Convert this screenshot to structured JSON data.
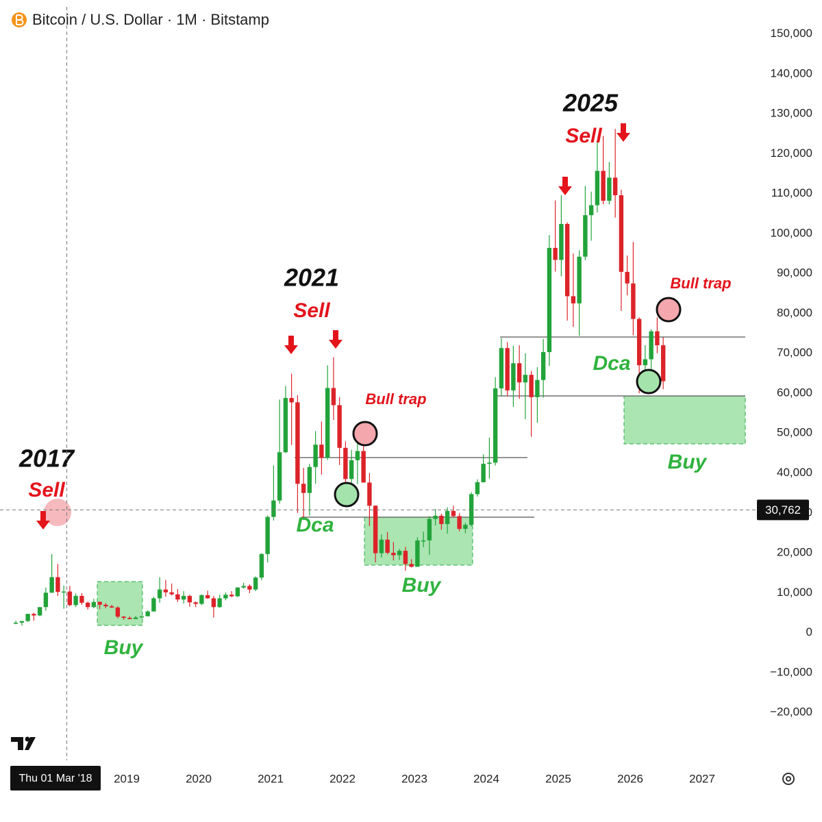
{
  "chart_data": {
    "type": "candlestick",
    "title": "Bitcoin / U.S. Dollar · 1M · Bitstamp",
    "x": [
      "2017-06",
      "2017-07",
      "2017-08",
      "2017-09",
      "2017-10",
      "2017-11",
      "2017-12",
      "2018-01",
      "2018-02",
      "2018-03",
      "2018-04",
      "2018-05",
      "2018-06",
      "2018-07",
      "2018-08",
      "2018-09",
      "2018-10",
      "2018-11",
      "2018-12",
      "2019-01",
      "2019-02",
      "2019-03",
      "2019-04",
      "2019-05",
      "2019-06",
      "2019-07",
      "2019-08",
      "2019-09",
      "2019-10",
      "2019-11",
      "2019-12",
      "2020-01",
      "2020-02",
      "2020-03",
      "2020-04",
      "2020-05",
      "2020-06",
      "2020-07",
      "2020-08",
      "2020-09",
      "2020-10",
      "2020-11",
      "2020-12",
      "2021-01",
      "2021-02",
      "2021-03",
      "2021-04",
      "2021-05",
      "2021-06",
      "2021-07",
      "2021-08",
      "2021-09",
      "2021-10",
      "2021-11",
      "2021-12",
      "2022-01",
      "2022-02",
      "2022-03",
      "2022-04",
      "2022-05",
      "2022-06",
      "2022-07",
      "2022-08",
      "2022-09",
      "2022-10",
      "2022-11",
      "2022-12",
      "2023-01",
      "2023-02",
      "2023-03",
      "2023-04",
      "2023-05",
      "2023-06",
      "2023-07",
      "2023-08",
      "2023-09",
      "2023-10",
      "2023-11",
      "2023-12",
      "2024-01",
      "2024-02",
      "2024-03",
      "2024-04",
      "2024-05",
      "2024-06",
      "2024-07",
      "2024-08",
      "2024-09",
      "2024-10",
      "2024-11",
      "2024-12",
      "2025-01",
      "2025-02",
      "2025-03",
      "2025-04",
      "2025-05",
      "2025-06",
      "2025-07",
      "2025-08",
      "2025-09",
      "2025-10",
      "2025-11",
      "2025-12",
      "2026-01",
      "2026-02",
      "2026-03",
      "2026-04",
      "2026-05",
      "2026-06"
    ],
    "open": [
      2300,
      2500,
      2900,
      4700,
      4300,
      6400,
      10000,
      13900,
      10200,
      10300,
      6900,
      9200,
      7500,
      6400,
      7700,
      7000,
      6600,
      6300,
      4000,
      3700,
      3400,
      3800,
      4100,
      5300,
      8600,
      10800,
      10100,
      9600,
      8300,
      9200,
      7600,
      7200,
      9400,
      8600,
      6400,
      8600,
      9500,
      9100,
      11300,
      11700,
      10800,
      13800,
      19700,
      29000,
      33100,
      45200,
      58800,
      57700,
      37300,
      35000,
      41500,
      47100,
      43800,
      61300,
      57000,
      46300,
      38500,
      43200,
      45500,
      37600,
      31800,
      19900,
      23300,
      20000,
      19400,
      20500,
      17200,
      16500,
      23100,
      23100,
      28500,
      29300,
      27200,
      30500,
      29200,
      26000,
      27000,
      34700,
      37700,
      42300,
      42600,
      61200,
      71300,
      60700,
      67500,
      62700,
      64600,
      59000,
      63300,
      70300,
      96400,
      93400,
      102400,
      84300,
      82500,
      94200,
      104600,
      107100,
      115700,
      108200,
      114000,
      109600,
      90400,
      87500,
      78600,
      67000,
      68500,
      75500,
      72000
    ],
    "high": [
      3000,
      2900,
      4700,
      5000,
      6400,
      11300,
      19700,
      17200,
      11800,
      11700,
      9800,
      9900,
      7800,
      8500,
      7800,
      7400,
      7000,
      6600,
      4200,
      4100,
      4200,
      4100,
      5600,
      9000,
      13900,
      13200,
      12300,
      10900,
      10400,
      9500,
      7800,
      9600,
      10500,
      9200,
      9500,
      10100,
      10400,
      11400,
      12500,
      12100,
      14100,
      19900,
      29300,
      41900,
      58400,
      61800,
      64900,
      59500,
      41300,
      42300,
      50500,
      52900,
      67000,
      69000,
      59000,
      47900,
      45800,
      48200,
      47400,
      40000,
      31900,
      24600,
      25200,
      22700,
      21000,
      21500,
      18400,
      23900,
      25300,
      29200,
      31000,
      29800,
      31400,
      31800,
      30000,
      27500,
      35200,
      38400,
      44700,
      48900,
      64000,
      73800,
      72800,
      71900,
      72000,
      70000,
      65600,
      66500,
      73600,
      99600,
      108300,
      109600,
      102800,
      95000,
      95800,
      111900,
      110500,
      123200,
      124500,
      117900,
      126200,
      111000,
      94500,
      97900,
      79000,
      72000,
      76000,
      79000,
      74000
    ],
    "low": [
      2100,
      1800,
      2700,
      3000,
      4100,
      5500,
      10000,
      9200,
      6000,
      6600,
      6400,
      7000,
      5800,
      6100,
      5900,
      6100,
      6200,
      3600,
      3200,
      3400,
      3400,
      3700,
      4100,
      5300,
      7500,
      9000,
      9300,
      7700,
      7300,
      6500,
      6400,
      6900,
      8500,
      3800,
      6200,
      8100,
      8900,
      8900,
      11000,
      9900,
      10400,
      13200,
      17600,
      28100,
      32300,
      45000,
      47000,
      30000,
      28800,
      29300,
      37300,
      39600,
      43300,
      53300,
      42000,
      33000,
      34300,
      37200,
      37700,
      26700,
      17600,
      18800,
      19600,
      18100,
      18200,
      15500,
      16300,
      16500,
      21400,
      19500,
      26900,
      25800,
      24800,
      28900,
      25400,
      24900,
      26600,
      34100,
      37600,
      38600,
      41900,
      59300,
      59200,
      56600,
      58600,
      53500,
      49100,
      52600,
      58900,
      66800,
      90500,
      89300,
      78200,
      76600,
      74400,
      93300,
      98200,
      105300,
      107300,
      107300,
      104000,
      80600,
      84500,
      74500,
      60000,
      64000,
      66000,
      70000,
      61000
    ],
    "close": [
      2500,
      2900,
      4700,
      4300,
      6400,
      10000,
      13900,
      10200,
      10300,
      6900,
      9200,
      7500,
      6400,
      7700,
      7000,
      6600,
      6300,
      4000,
      3700,
      3400,
      3800,
      4100,
      5300,
      8600,
      10800,
      10100,
      9600,
      8300,
      9200,
      7600,
      7200,
      9400,
      8600,
      6400,
      8600,
      9500,
      9100,
      11300,
      11700,
      10800,
      13800,
      19700,
      29000,
      33100,
      45200,
      58800,
      57700,
      37300,
      35000,
      41500,
      47100,
      43800,
      61300,
      57000,
      46300,
      38500,
      43200,
      45500,
      37600,
      31800,
      19900,
      23300,
      20000,
      19400,
      20500,
      17200,
      16500,
      23100,
      23100,
      28500,
      29300,
      27200,
      30500,
      29200,
      26000,
      27000,
      34700,
      37700,
      42300,
      42600,
      61200,
      71300,
      60700,
      67500,
      62700,
      64600,
      59000,
      63300,
      70300,
      96400,
      93400,
      102400,
      84300,
      82500,
      94200,
      104600,
      107100,
      115700,
      108200,
      114000,
      109600,
      90400,
      87500,
      78600,
      67000,
      68500,
      75500,
      72000,
      63000
    ],
    "up_color": "#22a33a",
    "down_color": "#dc2329",
    "xlim": [
      2017.238,
      2027.714
    ],
    "xticks": [
      2019,
      2020,
      2021,
      2022,
      2023,
      2024,
      2025,
      2026,
      2027
    ],
    "ylim": [
      -32000,
      156800
    ],
    "yticks": [
      {
        "value": -20000,
        "label": "−20,000"
      },
      {
        "value": -10000,
        "label": "−10,000"
      },
      0,
      {
        "value": 10000,
        "label": "10,000"
      },
      {
        "value": 20000,
        "label": "20,000"
      },
      {
        "value": 30000,
        "label": "30,000"
      },
      {
        "value": 40000,
        "label": "40,000"
      },
      {
        "value": 50000,
        "label": "50,000"
      },
      {
        "value": 60000,
        "label": "60,000"
      },
      {
        "value": 70000,
        "label": "70,000"
      },
      {
        "value": 80000,
        "label": "80,000"
      },
      {
        "value": 90000,
        "label": "90,000"
      },
      {
        "value": 100000,
        "label": "100,000"
      },
      {
        "value": 110000,
        "label": "110,000"
      },
      {
        "value": 120000,
        "label": "120,000"
      },
      {
        "value": 130000,
        "label": "130,000"
      },
      {
        "value": 140000,
        "label": "140,000"
      },
      {
        "value": 150000,
        "label": "150,000"
      }
    ],
    "crosshair": {
      "date": "2018-03",
      "date_label": "Thu 01 Mar '18",
      "price": 30762,
      "price_label": "30,762"
    },
    "annotations": [
      "2017",
      "Sell",
      "Buy",
      "2021",
      "Sell",
      "Bull trap",
      "Dca",
      "Buy",
      "2025",
      "Sell",
      "Bull trap",
      "Dca",
      "Buy"
    ]
  }
}
